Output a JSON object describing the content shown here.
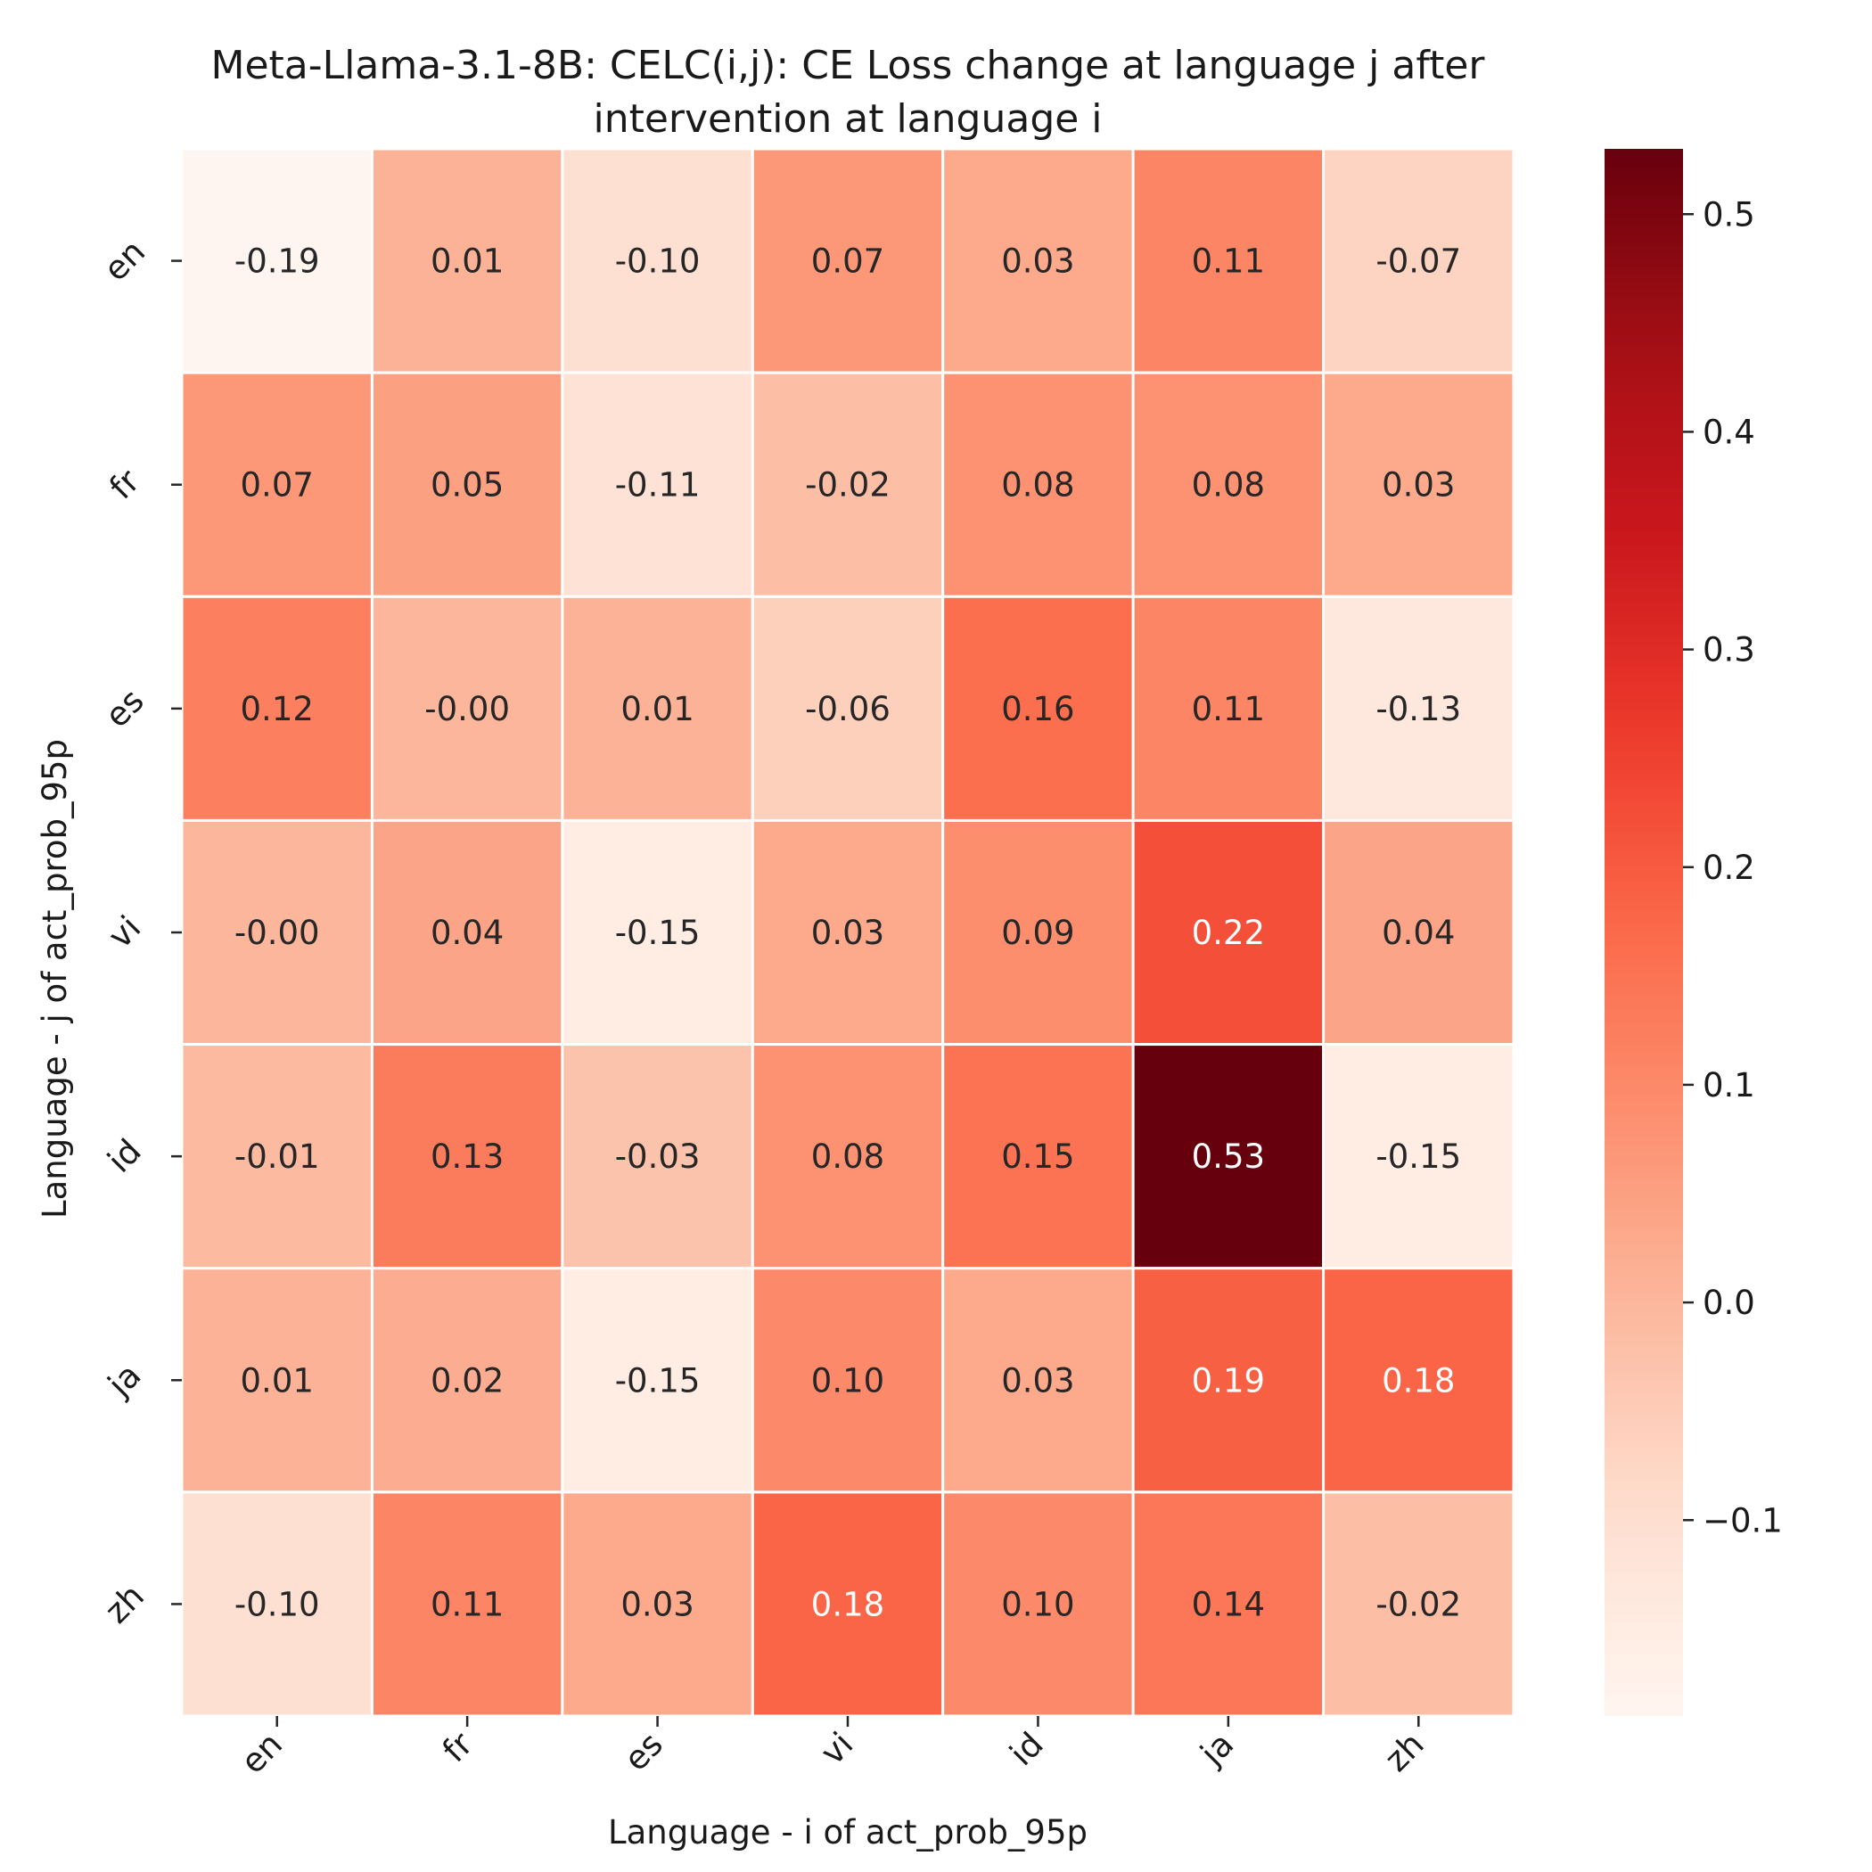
{
  "chart_data": {
    "type": "heatmap",
    "title_line1": "Meta-Llama-3.1-8B: CELC(i,j): CE Loss change at language j after",
    "title_line2": "intervention at language i",
    "xlabel": "Language - i of act_prob_95p",
    "ylabel": "Language - j of act_prob_95p",
    "x_categories": [
      "en",
      "fr",
      "es",
      "vi",
      "id",
      "ja",
      "zh"
    ],
    "y_categories": [
      "en",
      "fr",
      "es",
      "vi",
      "id",
      "ja",
      "zh"
    ],
    "values": [
      [
        -0.19,
        0.01,
        -0.1,
        0.07,
        0.03,
        0.11,
        -0.07
      ],
      [
        0.07,
        0.05,
        -0.11,
        -0.02,
        0.08,
        0.08,
        0.03
      ],
      [
        0.12,
        -0.0,
        0.01,
        -0.06,
        0.16,
        0.11,
        -0.13
      ],
      [
        -0.0,
        0.04,
        -0.15,
        0.03,
        0.09,
        0.22,
        0.04
      ],
      [
        -0.01,
        0.13,
        -0.03,
        0.08,
        0.15,
        0.53,
        -0.15
      ],
      [
        0.01,
        0.02,
        -0.15,
        0.1,
        0.03,
        0.19,
        0.18
      ],
      [
        -0.1,
        0.11,
        0.03,
        0.18,
        0.1,
        0.14,
        -0.02
      ]
    ],
    "labels": [
      [
        "-0.19",
        "0.01",
        "-0.10",
        "0.07",
        "0.03",
        "0.11",
        "-0.07"
      ],
      [
        "0.07",
        "0.05",
        "-0.11",
        "-0.02",
        "0.08",
        "0.08",
        "0.03"
      ],
      [
        "0.12",
        "-0.00",
        "0.01",
        "-0.06",
        "0.16",
        "0.11",
        "-0.13"
      ],
      [
        "-0.00",
        "0.04",
        "-0.15",
        "0.03",
        "0.09",
        "0.22",
        "0.04"
      ],
      [
        "-0.01",
        "0.13",
        "-0.03",
        "0.08",
        "0.15",
        "0.53",
        "-0.15"
      ],
      [
        "0.01",
        "0.02",
        "-0.15",
        "0.10",
        "0.03",
        "0.19",
        "0.18"
      ],
      [
        "-0.10",
        "0.11",
        "0.03",
        "0.18",
        "0.10",
        "0.14",
        "-0.02"
      ]
    ],
    "colorscale": "Reds",
    "vmin": -0.19,
    "vmax": 0.53,
    "colorbar_ticks": [
      {
        "value": 0.5,
        "label": "0.5"
      },
      {
        "value": 0.4,
        "label": "0.4"
      },
      {
        "value": 0.3,
        "label": "0.3"
      },
      {
        "value": 0.2,
        "label": "0.2"
      },
      {
        "value": 0.1,
        "label": "0.1"
      },
      {
        "value": 0.0,
        "label": "0.0"
      },
      {
        "value": -0.1,
        "label": "−0.1"
      }
    ],
    "grid": true
  }
}
